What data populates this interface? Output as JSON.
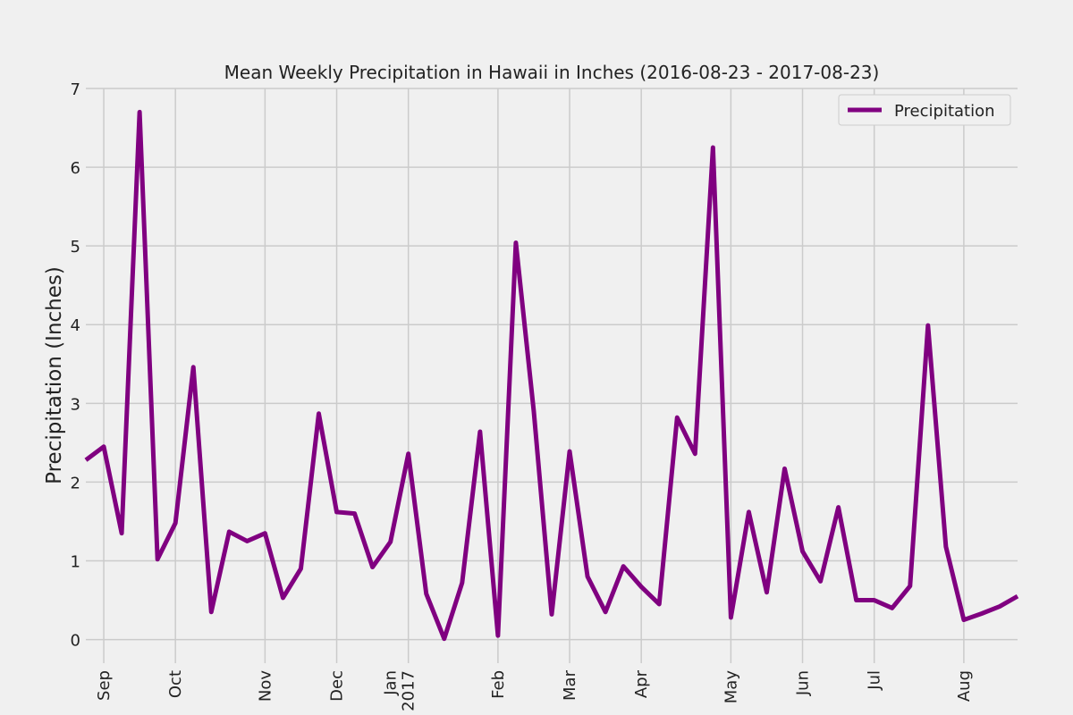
{
  "chart_data": {
    "type": "line",
    "title": "Mean Weekly Precipitation in Hawaii in Inches (2016-08-23 - 2017-08-23)",
    "y_label": "Precipitation (Inches)",
    "categories": [
      null,
      "Sep",
      null,
      null,
      null,
      "Oct",
      null,
      null,
      null,
      null,
      "Nov",
      null,
      null,
      null,
      "Dec",
      null,
      null,
      null,
      "Jan\n2017",
      null,
      null,
      null,
      null,
      "Feb",
      null,
      null,
      null,
      "Mar",
      null,
      null,
      null,
      "Apr",
      null,
      null,
      null,
      null,
      "May",
      null,
      null,
      null,
      "Jun",
      null,
      null,
      null,
      "Jul",
      null,
      null,
      null,
      null,
      "Aug",
      null,
      null,
      null
    ],
    "series": [
      {
        "name": "Precipitation",
        "color": "#800080",
        "values": [
          2.28,
          2.45,
          1.35,
          6.7,
          1.02,
          1.48,
          3.46,
          0.35,
          1.37,
          1.25,
          1.35,
          0.53,
          0.9,
          2.87,
          1.62,
          1.6,
          0.92,
          1.24,
          2.36,
          0.58,
          0.01,
          0.72,
          2.64,
          0.05,
          5.04,
          2.9,
          0.32,
          2.39,
          0.8,
          0.35,
          0.93,
          0.67,
          0.45,
          2.82,
          2.36,
          6.25,
          0.28,
          1.62,
          0.6,
          2.17,
          1.12,
          0.74,
          1.68,
          0.5,
          0.5,
          0.4,
          0.68,
          3.99,
          1.18,
          0.25,
          0.33,
          0.42,
          0.55
        ]
      }
    ],
    "ylim": [
      -0.3,
      7
    ],
    "yticks": [
      0,
      1,
      2,
      3,
      4,
      5,
      6,
      7
    ],
    "grid": true,
    "legend": "upper right"
  }
}
